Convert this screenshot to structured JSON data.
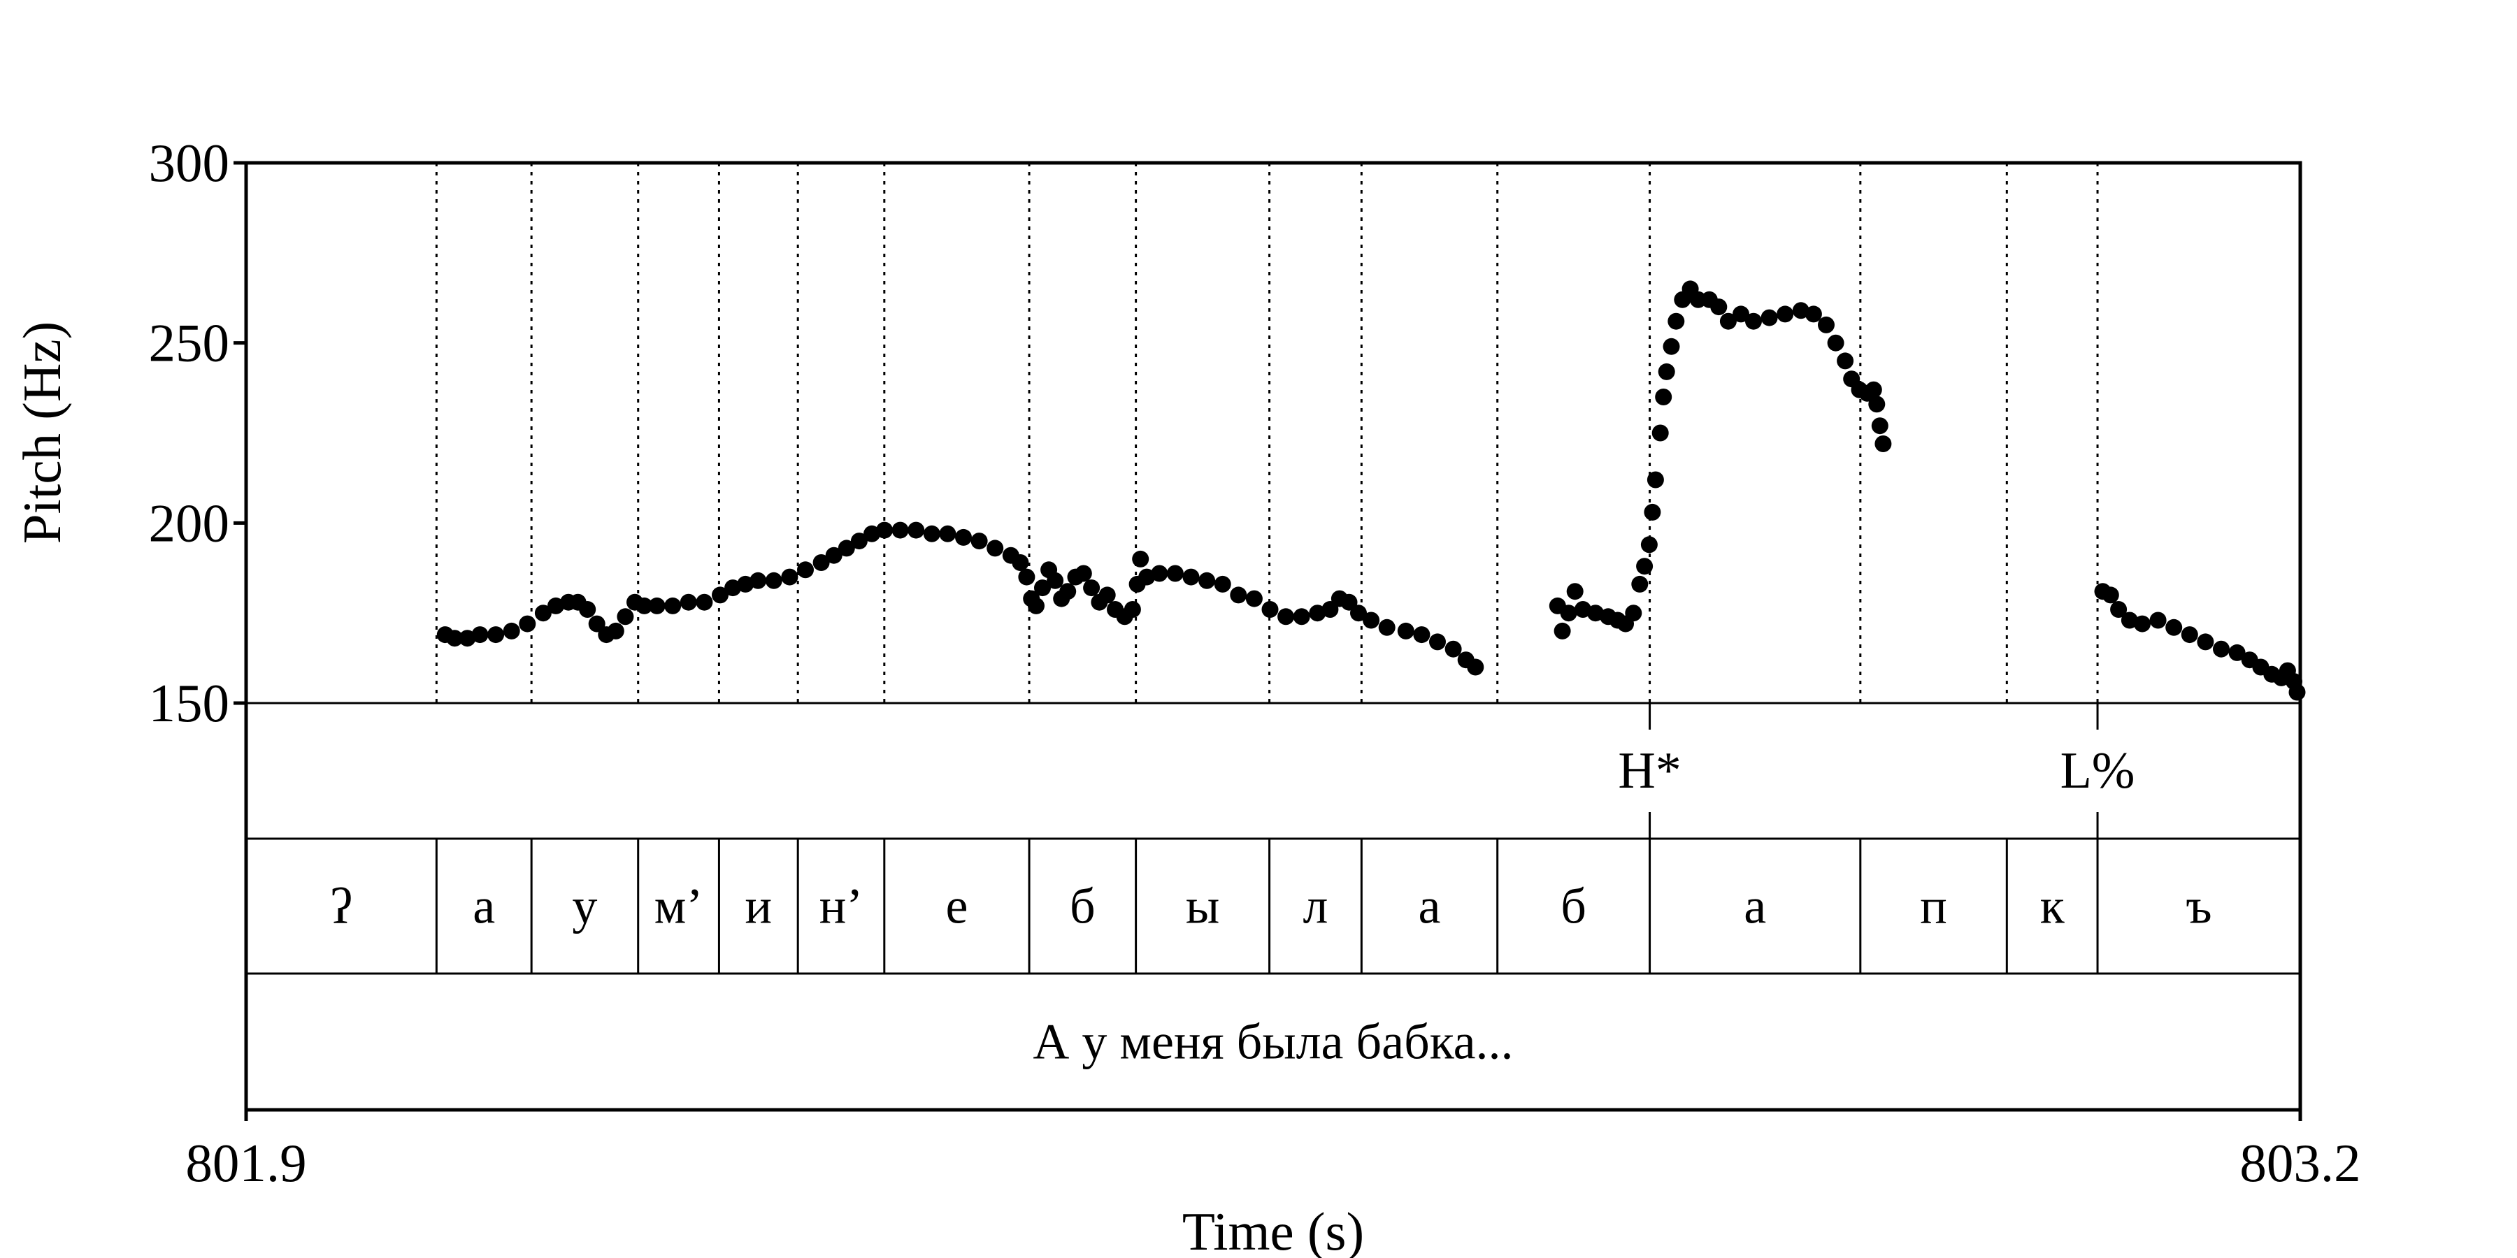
{
  "chart_data": {
    "type": "scatter",
    "title": "",
    "xlabel": "Time (s)",
    "ylabel": "Pitch (Hz)",
    "xlim": [
      801.9,
      803.2
    ],
    "ylim": [
      150,
      300
    ],
    "x_tick_labels": [
      "801.9",
      "803.2"
    ],
    "y_ticks": [
      150,
      200,
      250,
      300
    ],
    "y_tick_labels": [
      "150",
      "200",
      "250",
      "300"
    ],
    "grid": "vertical dotted lines at segment boundaries",
    "pitch_color": "#000000",
    "boundaries": [
      802.0205,
      802.0806,
      802.1481,
      802.1993,
      802.2492,
      802.3039,
      802.3956,
      802.4631,
      802.5476,
      802.6059,
      802.6919,
      802.7883,
      802.9216,
      803.0143,
      803.0717
    ],
    "segments": [
      {
        "label": "ʔ",
        "start": 801.9,
        "end": 802.0205
      },
      {
        "label": "а",
        "start": 802.0205,
        "end": 802.0806
      },
      {
        "label": "у",
        "start": 802.0806,
        "end": 802.1481
      },
      {
        "label": "м’",
        "start": 802.1481,
        "end": 802.1993
      },
      {
        "label": "и",
        "start": 802.1993,
        "end": 802.2492
      },
      {
        "label": "н’",
        "start": 802.2492,
        "end": 802.3039
      },
      {
        "label": "е",
        "start": 802.3039,
        "end": 802.3956
      },
      {
        "label": "б",
        "start": 802.3956,
        "end": 802.4631
      },
      {
        "label": "ы",
        "start": 802.4631,
        "end": 802.5476
      },
      {
        "label": "л",
        "start": 802.5476,
        "end": 802.6059
      },
      {
        "label": "а",
        "start": 802.6059,
        "end": 802.6919
      },
      {
        "label": "б",
        "start": 802.6919,
        "end": 802.7883
      },
      {
        "label": "а",
        "start": 802.7883,
        "end": 802.9216
      },
      {
        "label": "п",
        "start": 802.9216,
        "end": 803.0143
      },
      {
        "label": "к",
        "start": 803.0143,
        "end": 803.0717
      },
      {
        "label": "ъ",
        "start": 803.0717,
        "end": 803.2
      }
    ],
    "tones": [
      {
        "label": "H*",
        "time": 802.7883
      },
      {
        "label": "L%",
        "time": 803.0717
      }
    ],
    "words": [
      {
        "label": "А у меня была бабка...",
        "start": 801.9,
        "end": 803.2
      }
    ],
    "series": [
      {
        "points": [
          [
            802.026,
            169
          ],
          [
            802.032,
            168
          ],
          [
            802.04,
            168
          ],
          [
            802.048,
            169
          ],
          [
            802.058,
            169
          ],
          [
            802.068,
            170
          ],
          [
            802.078,
            172
          ],
          [
            802.088,
            175
          ],
          [
            802.096,
            177
          ],
          [
            802.104,
            178
          ],
          [
            802.11,
            178
          ],
          [
            802.116,
            176
          ],
          [
            802.122,
            172
          ],
          [
            802.128,
            169
          ],
          [
            802.134,
            170
          ],
          [
            802.14,
            174
          ],
          [
            802.146,
            178
          ],
          [
            802.152,
            177
          ],
          [
            802.16,
            177
          ],
          [
            802.17,
            177
          ],
          [
            802.18,
            178
          ],
          [
            802.19,
            178
          ],
          [
            802.2,
            180
          ],
          [
            802.208,
            182
          ],
          [
            802.216,
            183
          ],
          [
            802.224,
            184
          ],
          [
            802.234,
            184
          ],
          [
            802.244,
            185
          ],
          [
            802.254,
            187
          ],
          [
            802.264,
            189
          ],
          [
            802.272,
            191
          ],
          [
            802.28,
            193
          ],
          [
            802.288,
            195
          ],
          [
            802.296,
            197
          ],
          [
            802.304,
            198
          ],
          [
            802.314,
            198
          ],
          [
            802.324,
            198
          ],
          [
            802.334,
            197
          ],
          [
            802.344,
            197
          ],
          [
            802.354,
            196
          ],
          [
            802.364,
            195
          ],
          [
            802.374,
            193
          ],
          [
            802.384,
            191
          ],
          [
            802.39,
            189
          ],
          [
            802.394,
            185
          ],
          [
            802.397,
            179
          ],
          [
            802.4,
            177
          ],
          [
            802.404,
            182
          ],
          [
            802.408,
            187
          ],
          [
            802.412,
            184
          ],
          [
            802.416,
            179
          ],
          [
            802.42,
            181
          ],
          [
            802.425,
            185
          ],
          [
            802.43,
            186
          ],
          [
            802.435,
            182
          ],
          [
            802.44,
            178
          ],
          [
            802.445,
            180
          ],
          [
            802.45,
            176
          ],
          [
            802.456,
            174
          ],
          [
            802.461,
            176
          ],
          [
            802.464,
            183
          ],
          [
            802.466,
            190
          ],
          [
            802.47,
            185
          ],
          [
            802.478,
            186
          ],
          [
            802.488,
            186
          ],
          [
            802.498,
            185
          ],
          [
            802.508,
            184
          ],
          [
            802.518,
            183
          ],
          [
            802.528,
            180
          ],
          [
            802.538,
            179
          ],
          [
            802.548,
            176
          ],
          [
            802.558,
            174
          ],
          [
            802.568,
            174
          ],
          [
            802.578,
            175
          ],
          [
            802.586,
            176
          ],
          [
            802.592,
            179
          ],
          [
            802.598,
            178
          ],
          [
            802.604,
            175
          ],
          [
            802.612,
            173
          ],
          [
            802.622,
            171
          ],
          [
            802.634,
            170
          ],
          [
            802.644,
            169
          ],
          [
            802.654,
            167
          ],
          [
            802.664,
            165
          ],
          [
            802.672,
            162
          ],
          [
            802.678,
            160
          ],
          [
            802.73,
            177
          ],
          [
            802.733,
            170
          ],
          [
            802.737,
            175
          ],
          [
            802.741,
            181
          ],
          [
            802.746,
            176
          ],
          [
            802.754,
            175
          ],
          [
            802.762,
            174
          ],
          [
            802.768,
            173
          ],
          [
            802.773,
            172
          ],
          [
            802.778,
            175
          ],
          [
            802.782,
            183
          ],
          [
            802.785,
            188
          ],
          [
            802.788,
            194
          ],
          [
            802.79,
            203
          ],
          [
            802.792,
            212
          ],
          [
            802.795,
            225
          ],
          [
            802.797,
            235
          ],
          [
            802.799,
            242
          ],
          [
            802.802,
            249
          ],
          [
            802.805,
            256
          ],
          [
            802.809,
            262
          ],
          [
            802.814,
            265
          ],
          [
            802.819,
            262
          ],
          [
            802.826,
            262
          ],
          [
            802.832,
            260
          ],
          [
            802.838,
            256
          ],
          [
            802.846,
            258
          ],
          [
            802.854,
            256
          ],
          [
            802.864,
            257
          ],
          [
            802.874,
            258
          ],
          [
            802.884,
            259
          ],
          [
            802.892,
            258
          ],
          [
            802.9,
            255
          ],
          [
            802.906,
            250
          ],
          [
            802.912,
            245
          ],
          [
            802.916,
            240
          ],
          [
            802.921,
            237
          ],
          [
            802.926,
            236
          ],
          [
            802.93,
            237
          ],
          [
            802.932,
            233
          ],
          [
            802.934,
            227
          ],
          [
            802.936,
            222
          ],
          [
            803.075,
            181
          ],
          [
            803.08,
            180
          ],
          [
            803.085,
            176
          ],
          [
            803.092,
            173
          ],
          [
            803.1,
            172
          ],
          [
            803.11,
            173
          ],
          [
            803.12,
            171
          ],
          [
            803.13,
            169
          ],
          [
            803.14,
            167
          ],
          [
            803.15,
            165
          ],
          [
            803.16,
            164
          ],
          [
            803.168,
            162
          ],
          [
            803.175,
            160
          ],
          [
            803.182,
            158
          ],
          [
            803.188,
            157
          ],
          [
            803.192,
            159
          ],
          [
            803.196,
            156
          ],
          [
            803.198,
            153
          ]
        ]
      }
    ]
  }
}
